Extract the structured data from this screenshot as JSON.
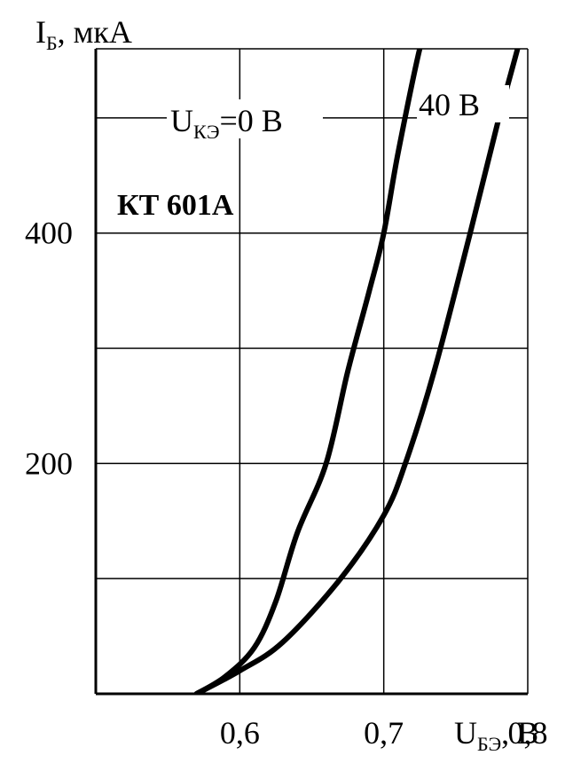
{
  "chart_data": {
    "type": "line",
    "title": "",
    "device_label": "КТ 601А",
    "ylabel": {
      "main": "I",
      "sub": "Б",
      "suffix": ", мкА"
    },
    "xlabel": {
      "main": "U",
      "sub": "БЭ",
      "suffix": ", В"
    },
    "xlim": [
      0.5,
      0.8
    ],
    "ylim": [
      0,
      560
    ],
    "x_ticks": [
      {
        "value": 0.6,
        "label": "0,6"
      },
      {
        "value": 0.7,
        "label": "0,7"
      },
      {
        "value": 0.8,
        "label": "0,8"
      }
    ],
    "y_ticks": [
      {
        "value": 200,
        "label": "200"
      },
      {
        "value": 400,
        "label": "400"
      }
    ],
    "x_grid": [
      0.6,
      0.7,
      0.8
    ],
    "y_grid": [
      100,
      200,
      300,
      400,
      500
    ],
    "grid": true,
    "series": [
      {
        "name": "U_КЭ = 0 В",
        "label_main": "U",
        "label_sub": "КЭ",
        "label_suffix": "=0 В",
        "points": [
          [
            0.57,
            0
          ],
          [
            0.59,
            15
          ],
          [
            0.61,
            40
          ],
          [
            0.625,
            80
          ],
          [
            0.64,
            140
          ],
          [
            0.66,
            200
          ],
          [
            0.675,
            280
          ],
          [
            0.69,
            350
          ],
          [
            0.7,
            400
          ],
          [
            0.71,
            470
          ],
          [
            0.725,
            560
          ],
          [
            0.735,
            600
          ]
        ]
      },
      {
        "name": "40 В",
        "label_main": "40 В",
        "points": [
          [
            0.57,
            0
          ],
          [
            0.6,
            20
          ],
          [
            0.63,
            45
          ],
          [
            0.67,
            100
          ],
          [
            0.7,
            155
          ],
          [
            0.715,
            200
          ],
          [
            0.735,
            280
          ],
          [
            0.76,
            400
          ],
          [
            0.78,
            500
          ],
          [
            0.795,
            570
          ],
          [
            0.8,
            600
          ]
        ]
      }
    ]
  }
}
